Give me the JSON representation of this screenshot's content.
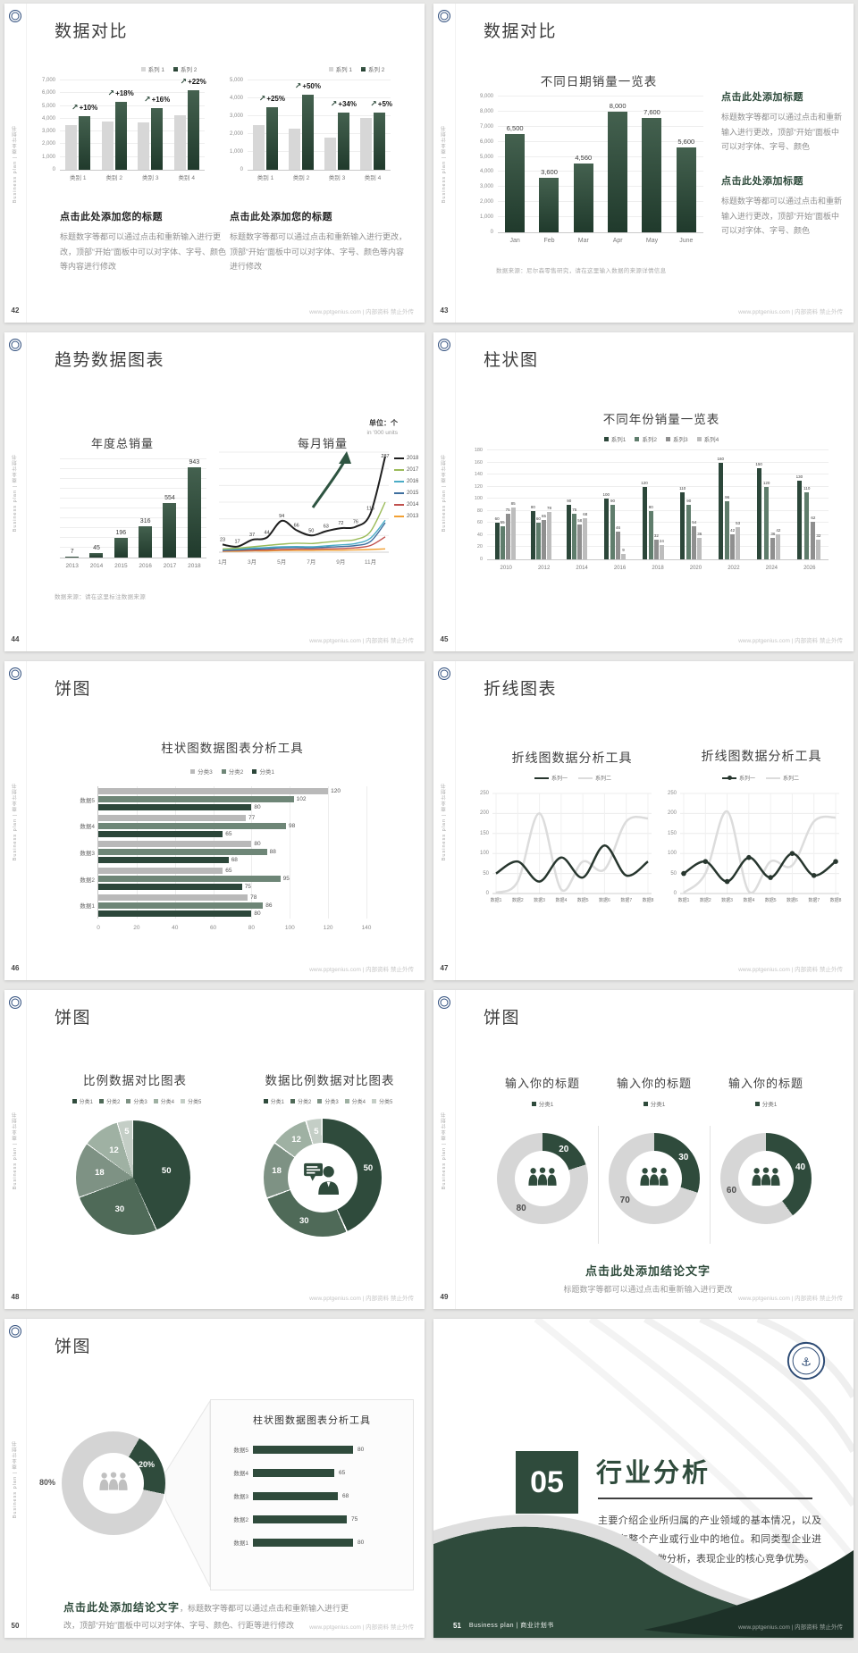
{
  "common": {
    "sidebar": "Business plan | 商业计划书",
    "footer_url": "www.pptgenius.com | 内部资料 禁止外传"
  },
  "s42": {
    "page": "42",
    "title": "数据对比",
    "legend": [
      "系列 1",
      "系列 2"
    ],
    "series_colors": [
      "#d7d7d7",
      "#2f4b3c"
    ],
    "charts": [
      {
        "ymax": 7000,
        "ystep": 1000,
        "cats": [
          "类别 1",
          "类别 2",
          "类别 3",
          "类别 4"
        ],
        "series1": [
          3500,
          3800,
          3700,
          4300
        ],
        "series2": [
          4200,
          5300,
          4800,
          6200
        ],
        "pct": [
          "+10%",
          "+18%",
          "+16%",
          "+22%"
        ]
      },
      {
        "ymax": 5000,
        "ystep": 1000,
        "cats": [
          "类别 1",
          "类别 2",
          "类别 3",
          "类别 4"
        ],
        "series1": [
          2500,
          2300,
          1800,
          2900
        ],
        "series2": [
          3500,
          4200,
          3200,
          3200
        ],
        "pct": [
          "+25%",
          "+50%",
          "+34%",
          "+5%"
        ]
      }
    ],
    "blocks": [
      {
        "h": "点击此处添加您的标题",
        "p": "标题数字等都可以通过点击和重新输入进行更改，顶部“开始”面板中可以对字体、字号、颜色等内容进行修改"
      },
      {
        "h": "点击此处添加您的标题",
        "p": "标题数字等都可以通过点击和重新输入进行更改，顶部“开始”面板中可以对字体、字号、颜色等内容进行修改"
      }
    ]
  },
  "s43": {
    "page": "43",
    "title": "数据对比",
    "chart_title": "不同日期销量一览表",
    "ymax": 9000,
    "ystep": 1000,
    "cats": [
      "Jan",
      "Feb",
      "Mar",
      "Apr",
      "May",
      "June"
    ],
    "values": [
      6500,
      3600,
      4560,
      8000,
      7600,
      5600
    ],
    "footnote": "数据来源：尼尔森零售研究，请在这里输入数据的来源详情信息",
    "blocks": [
      {
        "h": "点击此处添加标题",
        "p": "标题数字等都可以通过点击和重新输入进行更改，顶部“开始”面板中可以对字体、字号、颜色"
      },
      {
        "h": "点击此处添加标题",
        "p": "标题数字等都可以通过点击和重新输入进行更改，顶部“开始”面板中可以对字体、字号、颜色"
      }
    ]
  },
  "s44": {
    "page": "44",
    "title": "趋势数据图表",
    "unit_cn": "单位：个",
    "unit_en": "in '000 units",
    "left": {
      "title": "年度总销量",
      "cats": [
        "2013",
        "2014",
        "2015",
        "2016",
        "2017",
        "2018"
      ],
      "values": [
        7,
        45,
        196,
        316,
        554,
        943
      ]
    },
    "right": {
      "title": "每月销量",
      "xlabels": [
        "1月",
        "3月",
        "5月",
        "7月",
        "9月",
        "11月"
      ],
      "series": [
        {
          "name": "2018",
          "color": "#1f1f1f",
          "labeled": true,
          "values": [
            23,
            17,
            37,
            44,
            94,
            66,
            50,
            63,
            72,
            76,
            116,
            287
          ]
        },
        {
          "name": "2017",
          "color": "#9bbb59",
          "values": [
            10,
            12,
            16,
            20,
            24,
            27,
            26,
            30,
            34,
            38,
            62,
            150
          ]
        },
        {
          "name": "2016",
          "color": "#4bacc6",
          "values": [
            8,
            9,
            12,
            14,
            16,
            17,
            16,
            19,
            22,
            26,
            42,
            96
          ]
        },
        {
          "name": "2015",
          "color": "#3e6f9e",
          "values": [
            6,
            7,
            9,
            11,
            13,
            14,
            13,
            15,
            17,
            20,
            32,
            88
          ]
        },
        {
          "name": "2014",
          "color": "#c0504d",
          "values": [
            4,
            5,
            6,
            7,
            8,
            9,
            9,
            10,
            11,
            13,
            20,
            46
          ]
        },
        {
          "name": "2013",
          "color": "#f2a033",
          "values": [
            3,
            3,
            4,
            4,
            5,
            5,
            5,
            6,
            6,
            7,
            8,
            10
          ]
        }
      ]
    },
    "footnote": "数据来源：请在这里标注数据来源"
  },
  "s45": {
    "page": "45",
    "title": "柱状图",
    "chart_title": "不同年份销量一览表",
    "legend": [
      "系列1",
      "系列2",
      "系列3",
      "系列4"
    ],
    "colors": [
      "#2c473a",
      "#5f7d6c",
      "#8f8f8f",
      "#bdbdbd"
    ],
    "ymax": 180,
    "ystep": 20,
    "cats": [
      "2010",
      "2012",
      "2014",
      "2016",
      "2018",
      "2020",
      "2022",
      "2024",
      "2026"
    ],
    "series": [
      [
        60,
        80,
        90,
        100,
        120,
        110,
        160,
        150,
        130
      ],
      [
        55,
        60,
        75,
        90,
        80,
        90,
        96,
        120,
        110
      ],
      [
        75,
        65,
        58,
        46,
        32,
        54,
        42,
        36,
        62
      ],
      [
        85,
        78,
        68,
        9,
        24,
        36,
        53,
        42,
        32
      ]
    ]
  },
  "s46": {
    "page": "46",
    "title": "饼图",
    "chart_title": "柱状图数据图表分析工具",
    "legend": [
      {
        "label": "分类3",
        "color": "#b9b9b9"
      },
      {
        "label": "分类2",
        "color": "#6e8677"
      },
      {
        "label": "分类1",
        "color": "#2c473a"
      }
    ],
    "cats": [
      "数据5",
      "数据4",
      "数据3",
      "数据2",
      "数据1"
    ],
    "series": {
      "c3": [
        120,
        77,
        80,
        65,
        78
      ],
      "c2": [
        102,
        98,
        88,
        95,
        86
      ],
      "c1": [
        80,
        65,
        68,
        75,
        80
      ]
    },
    "xmax": 140,
    "xstep": 20
  },
  "s47": {
    "page": "47",
    "title": "折线图表",
    "colors": {
      "s1": "#27362e",
      "s2": "#dcdcdc"
    },
    "charts": [
      {
        "title": "折线图数据分析工具",
        "legend": [
          "系列一",
          "系列二"
        ],
        "markers": false,
        "s1": [
          50,
          80,
          30,
          90,
          40,
          120,
          45,
          80
        ],
        "s2": [
          2,
          30,
          200,
          10,
          80,
          60,
          180,
          188
        ]
      },
      {
        "title": "折线图数据分析工具",
        "legend": [
          "系列一",
          "系列二"
        ],
        "markers": true,
        "s1": [
          50,
          80,
          30,
          90,
          40,
          100,
          45,
          80
        ],
        "s2": [
          2,
          50,
          205,
          5,
          80,
          70,
          180,
          190
        ]
      }
    ],
    "xlabels": [
      "数据1",
      "数据2",
      "数据3",
      "数据4",
      "数据5",
      "数据6",
      "数据7",
      "数据8"
    ],
    "ymax": 250,
    "ystep": 50
  },
  "s48": {
    "page": "48",
    "title": "饼图",
    "left_title": "比例数据对比图表",
    "right_title": "数据比例数据对比图表",
    "legend": [
      "分类1",
      "分类2",
      "分类3",
      "分类4",
      "分类5"
    ],
    "values": [
      50,
      30,
      18,
      12,
      5
    ],
    "colors": [
      "#2f4b3c",
      "#4f6a58",
      "#7e9284",
      "#9fb1a3",
      "#c4cec6"
    ]
  },
  "s49": {
    "page": "49",
    "title": "饼图",
    "green": "#2f4b3c",
    "gray": "#d6d6d6",
    "items": [
      {
        "title": "输入你的标题",
        "legend": "分类1",
        "green": 20,
        "gray": 80
      },
      {
        "title": "输入你的标题",
        "legend": "分类1",
        "green": 30,
        "gray": 70
      },
      {
        "title": "输入你的标题",
        "legend": "分类1",
        "green": 40,
        "gray": 60
      }
    ],
    "conclusion_h": "点击此处添加结论文字",
    "conclusion_p": "标题数字等都可以通过点击和重新输入进行更改"
  },
  "s50": {
    "page": "50",
    "title": "饼图",
    "donut": {
      "green": 20,
      "gray": 80,
      "green_label": "20%",
      "gray_label": "80%"
    },
    "panel": {
      "title": "柱状图数据图表分析工具",
      "cats": [
        "数据5",
        "数据4",
        "数据3",
        "数据2",
        "数据1"
      ],
      "values": [
        80,
        65,
        68,
        75,
        80
      ],
      "max": 100
    },
    "conclusion_h": "点击此处添加结论文字",
    "conclusion_p": "，标题数字等都可以通过点击和重新输入进行更改，顶部“开始”面板中可以对字体、字号、颜色、行距等进行修改"
  },
  "s51": {
    "page": "51",
    "number": "05",
    "title": "行业分析",
    "body": "主要介绍企业所归属的产业领域的基本情况，以及企业在整个产业或行业中的地位。和同类型企业进行对比分析，做分析，表现企业的核心竞争优势。",
    "footer_brand": "Business plan | 商业计划书"
  }
}
